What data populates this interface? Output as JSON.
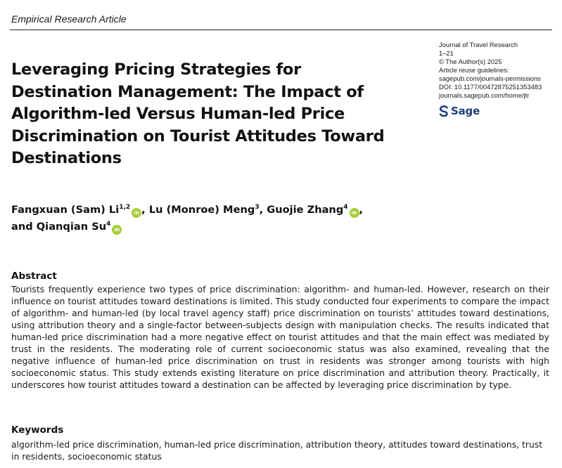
{
  "header": {
    "article_type": "Empirical Research Article"
  },
  "title": "Leveraging Pricing Strategies for Destination Management: The Impact of Algorithm-led Versus Human-led Price Discrimination on Tourist Attitudes Toward Destinations",
  "journal_meta": {
    "journal_name": "Journal of Travel Research",
    "pages": "1–21",
    "copyright": "© The Author(s) 2025",
    "reuse_label": "Article reuse guidelines:",
    "reuse_url": "sagepub.com/journals-permissions",
    "doi": "DOI: 10.1177/00472875251353483",
    "journal_url": "journals.sagepub.com/home/jtr",
    "publisher_logo_text": "Sage",
    "publisher_logo_color": "#1d3d7a"
  },
  "authors": [
    {
      "name": "Fangxuan (Sam) Li",
      "affiliation": "1,2",
      "orcid": true
    },
    {
      "name": "Lu (Monroe) Meng",
      "affiliation": "3",
      "orcid": false
    },
    {
      "name": "Guojie Zhang",
      "affiliation": "4",
      "orcid": true
    },
    {
      "name": "Qianqian Su",
      "affiliation": "4",
      "orcid": true
    }
  ],
  "author_separators": {
    "comma": ",",
    "and_prefix": "and"
  },
  "orcid_badge": {
    "text": "iD",
    "color": "#a6ce39"
  },
  "abstract": {
    "heading": "Abstract",
    "body": "Tourists frequently experience two types of price discrimination: algorithm- and human-led. However, research on their influence on tourist attitudes toward destinations is limited. This study conducted four experiments to compare the impact of algorithm- and human-led (by local travel agency staff) price discrimination on tourists’ attitudes toward destinations, using attribution theory and a single-factor between-subjects design with manipulation checks. The results indicated that human-led price discrimination had a more negative effect on tourist attitudes and that the main effect was mediated by trust in the residents. The moderating role of current socioeconomic status was also examined, revealing that the negative influence of human-led price discrimination on trust in residents was stronger among tourists with high socioeconomic status. This study extends existing literature on price discrimination and attribution theory. Practically, it underscores how tourist attitudes toward a destination can be affected by leveraging price discrimination by type."
  },
  "keywords": {
    "heading": "Keywords",
    "body": "algorithm-led price discrimination, human-led price discrimination, attribution theory, attitudes toward destinations, trust in residents, socioeconomic status"
  }
}
